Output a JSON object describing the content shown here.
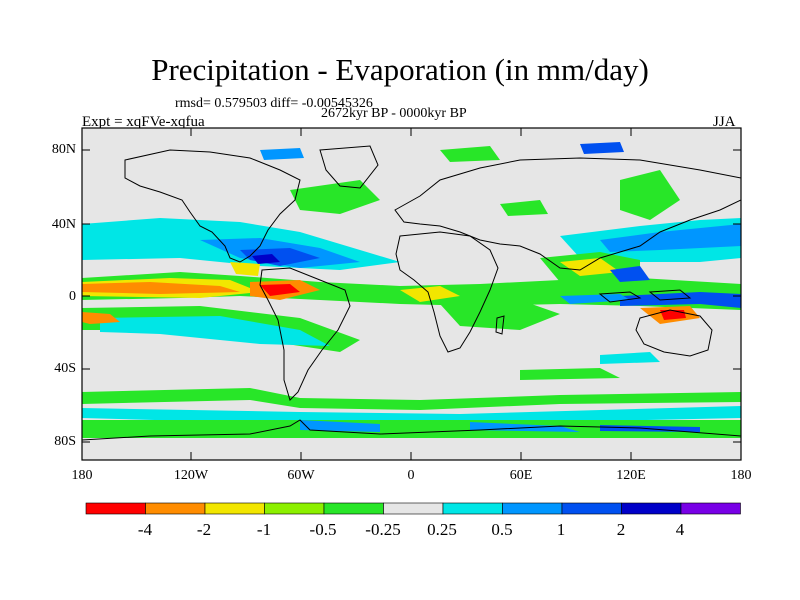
{
  "title": "Precipitation - Evaporation (in mm/day)",
  "stats": "rmsd= 0.579503 diff= -0.00545326",
  "period": "2672kyr BP - 0000kyr BP",
  "experiment": "Expt = xqFVe-xqfua",
  "season": "JJA",
  "lat_labels": [
    "80N",
    "40N",
    "0",
    "40S",
    "80S"
  ],
  "lon_labels": [
    "180",
    "120W",
    "60W",
    "0",
    "60E",
    "120E",
    "180"
  ],
  "colorbar": {
    "labels": [
      "-4",
      "-2",
      "-1",
      "-0.5",
      "-0.25",
      "0.25",
      "0.5",
      "1",
      "2",
      "4"
    ],
    "colors": [
      "#ff0000",
      "#ff8c00",
      "#f2e600",
      "#8cf000",
      "#28e628",
      "#e6e6e6",
      "#00e6e6",
      "#0096ff",
      "#0050f0",
      "#0000c8",
      "#7800e6"
    ]
  },
  "background_color": "#e6e6e6"
}
